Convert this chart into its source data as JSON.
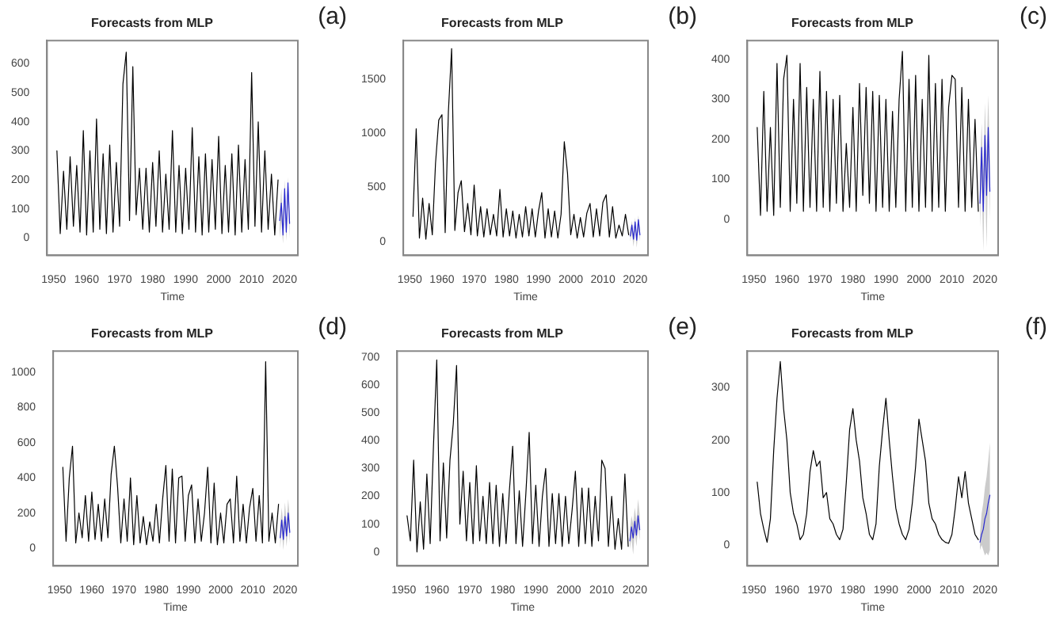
{
  "chart_data": [
    {
      "type": "line",
      "title": "Forecasts from MLP",
      "xlabel": "Time",
      "annotations": [
        "(a)"
      ],
      "xlim": [
        1948,
        2024
      ],
      "xticks": [
        1950,
        1960,
        1970,
        1980,
        1990,
        2000,
        2010,
        2020
      ],
      "ylim": [
        -60,
        680
      ],
      "yticks": [
        0,
        100,
        200,
        300,
        400,
        500,
        600
      ],
      "series": [
        {
          "color": "#000000",
          "x": [
            1951,
            1952,
            1953,
            1954,
            1955,
            1956,
            1957,
            1958,
            1959,
            1960,
            1961,
            1962,
            1963,
            1964,
            1965,
            1966,
            1967,
            1968,
            1969,
            1970,
            1971,
            1972,
            1973,
            1974,
            1975,
            1976,
            1977,
            1978,
            1979,
            1980,
            1981,
            1982,
            1983,
            1984,
            1985,
            1986,
            1987,
            1988,
            1989,
            1990,
            1991,
            1992,
            1993,
            1994,
            1995,
            1996,
            1997,
            1998,
            1999,
            2000,
            2001,
            2002,
            2003,
            2004,
            2005,
            2006,
            2007,
            2008,
            2009,
            2010,
            2011,
            2012,
            2013,
            2014,
            2015,
            2016,
            2017,
            2018
          ],
          "values": [
            300,
            15,
            230,
            30,
            280,
            40,
            250,
            20,
            370,
            10,
            300,
            20,
            410,
            30,
            290,
            15,
            320,
            20,
            260,
            40,
            530,
            640,
            60,
            590,
            80,
            240,
            30,
            240,
            20,
            260,
            40,
            300,
            20,
            220,
            30,
            370,
            20,
            250,
            15,
            240,
            30,
            380,
            20,
            280,
            10,
            290,
            20,
            270,
            30,
            350,
            15,
            250,
            20,
            290,
            10,
            320,
            20,
            270,
            30,
            570,
            40,
            400,
            20,
            300,
            30,
            220,
            10,
            200
          ]
        },
        {
          "color": "#2a2ad0",
          "x": [
            2018.5,
            2019,
            2019.5,
            2020,
            2020.5,
            2021,
            2021.5
          ],
          "values": [
            60,
            120,
            10,
            170,
            20,
            190,
            50
          ],
          "lower": [
            0,
            60,
            -20,
            100,
            -10,
            120,
            0
          ],
          "upper": [
            90,
            170,
            40,
            200,
            50,
            210,
            80
          ]
        }
      ]
    },
    {
      "type": "line",
      "title": "Forecasts from MLP",
      "xlabel": "Time",
      "annotations": [
        "(b)"
      ],
      "xlim": [
        1948,
        2024
      ],
      "xticks": [
        1950,
        1960,
        1970,
        1980,
        1990,
        2000,
        2010,
        2020
      ],
      "ylim": [
        -130,
        1855
      ],
      "yticks": [
        0,
        500,
        1000,
        1500
      ],
      "series": [
        {
          "color": "#000000",
          "x": [
            1951,
            1952,
            1953,
            1954,
            1955,
            1956,
            1957,
            1958,
            1959,
            1960,
            1961,
            1962,
            1963,
            1964,
            1965,
            1966,
            1967,
            1968,
            1969,
            1970,
            1971,
            1972,
            1973,
            1974,
            1975,
            1976,
            1977,
            1978,
            1979,
            1980,
            1981,
            1982,
            1983,
            1984,
            1985,
            1986,
            1987,
            1988,
            1989,
            1990,
            1991,
            1992,
            1993,
            1994,
            1995,
            1996,
            1997,
            1998,
            1999,
            2000,
            2001,
            2002,
            2003,
            2004,
            2005,
            2006,
            2007,
            2008,
            2009,
            2010,
            2011,
            2012,
            2013,
            2014,
            2015,
            2016,
            2017,
            2018
          ],
          "values": [
            230,
            1040,
            30,
            400,
            20,
            350,
            60,
            720,
            1120,
            1170,
            80,
            1200,
            1780,
            100,
            450,
            560,
            90,
            350,
            60,
            520,
            50,
            320,
            40,
            300,
            60,
            250,
            50,
            480,
            40,
            300,
            50,
            280,
            30,
            250,
            40,
            320,
            50,
            300,
            40,
            280,
            450,
            30,
            300,
            40,
            280,
            30,
            250,
            920,
            630,
            60,
            250,
            30,
            220,
            40,
            260,
            350,
            40,
            300,
            50,
            360,
            430,
            40,
            320,
            30,
            150,
            50,
            250,
            60
          ]
        },
        {
          "color": "#2a2ad0",
          "x": [
            2018.5,
            2019,
            2019.5,
            2020,
            2020.5,
            2021,
            2021.5
          ],
          "values": [
            50,
            150,
            20,
            180,
            10,
            200,
            60
          ],
          "lower": [
            0,
            80,
            -50,
            100,
            -60,
            120,
            0
          ],
          "upper": [
            100,
            190,
            60,
            220,
            50,
            240,
            110
          ]
        }
      ]
    },
    {
      "type": "line",
      "title": "Forecasts from MLP",
      "xlabel": "Time",
      "annotations": [
        "(c)"
      ],
      "xlim": [
        1948,
        2024
      ],
      "xticks": [
        1950,
        1960,
        1970,
        1980,
        1990,
        2000,
        2010,
        2020
      ],
      "ylim": [
        -90,
        447
      ],
      "yticks": [
        0,
        100,
        200,
        300,
        400
      ],
      "series": [
        {
          "color": "#000000",
          "x": [
            1951,
            1952,
            1953,
            1954,
            1955,
            1956,
            1957,
            1958,
            1959,
            1960,
            1961,
            1962,
            1963,
            1964,
            1965,
            1966,
            1967,
            1968,
            1969,
            1970,
            1971,
            1972,
            1973,
            1974,
            1975,
            1976,
            1977,
            1978,
            1979,
            1980,
            1981,
            1982,
            1983,
            1984,
            1985,
            1986,
            1987,
            1988,
            1989,
            1990,
            1991,
            1992,
            1993,
            1994,
            1995,
            1996,
            1997,
            1998,
            1999,
            2000,
            2001,
            2002,
            2003,
            2004,
            2005,
            2006,
            2007,
            2008,
            2009,
            2010,
            2011,
            2012,
            2013,
            2014,
            2015,
            2016,
            2017,
            2018
          ],
          "values": [
            230,
            10,
            320,
            20,
            230,
            10,
            390,
            30,
            350,
            410,
            20,
            300,
            40,
            390,
            20,
            330,
            30,
            300,
            20,
            370,
            30,
            320,
            20,
            300,
            40,
            310,
            20,
            190,
            30,
            280,
            20,
            340,
            60,
            330,
            40,
            320,
            20,
            310,
            30,
            300,
            20,
            270,
            30,
            300,
            420,
            20,
            350,
            30,
            360,
            20,
            300,
            30,
            410,
            20,
            340,
            30,
            350,
            20,
            280,
            360,
            350,
            30,
            330,
            20,
            300,
            30,
            250,
            20
          ]
        },
        {
          "color": "#2a2ad0",
          "x": [
            2018.5,
            2019,
            2019.5,
            2020,
            2020.5,
            2021,
            2021.5
          ],
          "values": [
            40,
            180,
            20,
            210,
            60,
            230,
            70
          ],
          "lower": [
            -20,
            100,
            -80,
            120,
            -70,
            150,
            0
          ],
          "upper": [
            120,
            240,
            110,
            290,
            150,
            310,
            160
          ]
        }
      ]
    },
    {
      "type": "line",
      "title": "Forecasts from MLP",
      "xlabel": "Time",
      "annotations": [
        "(d)"
      ],
      "xlim": [
        1948,
        2024
      ],
      "xticks": [
        1950,
        1960,
        1970,
        1980,
        1990,
        2000,
        2010,
        2020
      ],
      "ylim": [
        -100,
        1120
      ],
      "yticks": [
        0,
        200,
        400,
        600,
        800,
        1000
      ],
      "series": [
        {
          "color": "#000000",
          "x": [
            1951,
            1952,
            1953,
            1954,
            1955,
            1956,
            1957,
            1958,
            1959,
            1960,
            1961,
            1962,
            1963,
            1964,
            1965,
            1966,
            1967,
            1968,
            1969,
            1970,
            1971,
            1972,
            1973,
            1974,
            1975,
            1976,
            1977,
            1978,
            1979,
            1980,
            1981,
            1982,
            1983,
            1984,
            1985,
            1986,
            1987,
            1988,
            1989,
            1990,
            1991,
            1992,
            1993,
            1994,
            1995,
            1996,
            1997,
            1998,
            1999,
            2000,
            2001,
            2002,
            2003,
            2004,
            2005,
            2006,
            2007,
            2008,
            2009,
            2010,
            2011,
            2012,
            2013,
            2014,
            2015,
            2016,
            2017,
            2018
          ],
          "values": [
            460,
            40,
            400,
            580,
            30,
            200,
            60,
            300,
            40,
            320,
            50,
            250,
            40,
            280,
            60,
            420,
            580,
            350,
            30,
            280,
            40,
            400,
            20,
            300,
            30,
            180,
            20,
            150,
            40,
            250,
            30,
            280,
            470,
            40,
            450,
            30,
            400,
            410,
            40,
            300,
            360,
            30,
            280,
            40,
            200,
            460,
            30,
            370,
            20,
            200,
            30,
            250,
            280,
            30,
            410,
            40,
            250,
            30,
            230,
            340,
            40,
            300,
            30,
            1060,
            40,
            200,
            30,
            250
          ]
        },
        {
          "color": "#2a2ad0",
          "x": [
            2018.5,
            2019,
            2019.5,
            2020,
            2020.5,
            2021,
            2021.5
          ],
          "values": [
            60,
            160,
            50,
            180,
            70,
            200,
            90
          ],
          "lower": [
            0,
            100,
            -10,
            120,
            10,
            140,
            30
          ],
          "upper": [
            130,
            230,
            120,
            260,
            140,
            280,
            160
          ]
        }
      ]
    },
    {
      "type": "line",
      "title": "Forecasts from MLP",
      "xlabel": "Time",
      "annotations": [
        "(e)"
      ],
      "xlim": [
        1948,
        2024
      ],
      "xticks": [
        1950,
        1960,
        1970,
        1980,
        1990,
        2000,
        2010,
        2020
      ],
      "ylim": [
        -50,
        722
      ],
      "yticks": [
        0,
        100,
        200,
        300,
        400,
        500,
        600,
        700
      ],
      "series": [
        {
          "color": "#000000",
          "x": [
            1951,
            1952,
            1953,
            1954,
            1955,
            1956,
            1957,
            1958,
            1959,
            1960,
            1961,
            1962,
            1963,
            1964,
            1965,
            1966,
            1967,
            1968,
            1969,
            1970,
            1971,
            1972,
            1973,
            1974,
            1975,
            1976,
            1977,
            1978,
            1979,
            1980,
            1981,
            1982,
            1983,
            1984,
            1985,
            1986,
            1987,
            1988,
            1989,
            1990,
            1991,
            1992,
            1993,
            1994,
            1995,
            1996,
            1997,
            1998,
            1999,
            2000,
            2001,
            2002,
            2003,
            2004,
            2005,
            2006,
            2007,
            2008,
            2009,
            2010,
            2011,
            2012,
            2013,
            2014,
            2015,
            2016,
            2017,
            2018
          ],
          "values": [
            130,
            40,
            330,
            0,
            180,
            10,
            280,
            30,
            380,
            690,
            40,
            320,
            50,
            330,
            460,
            670,
            100,
            290,
            40,
            250,
            30,
            310,
            40,
            200,
            30,
            250,
            30,
            240,
            20,
            210,
            30,
            220,
            380,
            30,
            220,
            20,
            210,
            430,
            30,
            240,
            20,
            200,
            300,
            20,
            210,
            30,
            210,
            20,
            200,
            30,
            150,
            290,
            20,
            230,
            30,
            230,
            20,
            200,
            40,
            330,
            300,
            20,
            200,
            10,
            120,
            10,
            280,
            20
          ]
        },
        {
          "color": "#2a2ad0",
          "x": [
            2018.5,
            2019,
            2019.5,
            2020,
            2020.5,
            2021,
            2021.5
          ],
          "values": [
            40,
            90,
            50,
            110,
            60,
            130,
            80
          ],
          "lower": [
            10,
            50,
            -10,
            70,
            20,
            90,
            40
          ],
          "upper": [
            80,
            130,
            100,
            160,
            110,
            190,
            130
          ]
        }
      ]
    },
    {
      "type": "line",
      "title": "Forecasts from MLP",
      "xlabel": "Time",
      "annotations": [
        "(f)"
      ],
      "xlim": [
        1948,
        2024
      ],
      "xticks": [
        1950,
        1960,
        1970,
        1980,
        1990,
        2000,
        2010,
        2020
      ],
      "ylim": [
        -40,
        370
      ],
      "yticks": [
        0,
        100,
        200,
        300
      ],
      "series": [
        {
          "color": "#000000",
          "x": [
            1951,
            1952,
            1953,
            1954,
            1955,
            1956,
            1957,
            1958,
            1959,
            1960,
            1961,
            1962,
            1963,
            1964,
            1965,
            1966,
            1967,
            1968,
            1969,
            1970,
            1971,
            1972,
            1973,
            1974,
            1975,
            1976,
            1977,
            1978,
            1979,
            1980,
            1981,
            1982,
            1983,
            1984,
            1985,
            1986,
            1987,
            1988,
            1989,
            1990,
            1991,
            1992,
            1993,
            1994,
            1995,
            1996,
            1997,
            1998,
            1999,
            2000,
            2001,
            2002,
            2003,
            2004,
            2005,
            2006,
            2007,
            2008,
            2009,
            2010,
            2011,
            2012,
            2013,
            2014,
            2015,
            2016,
            2017,
            2018
          ],
          "values": [
            120,
            60,
            30,
            5,
            50,
            180,
            280,
            350,
            260,
            200,
            100,
            60,
            40,
            10,
            20,
            60,
            140,
            180,
            150,
            160,
            90,
            100,
            50,
            40,
            20,
            10,
            30,
            120,
            220,
            260,
            200,
            160,
            90,
            60,
            20,
            10,
            40,
            150,
            220,
            280,
            200,
            130,
            70,
            40,
            20,
            10,
            30,
            80,
            150,
            240,
            200,
            160,
            80,
            50,
            40,
            20,
            10,
            5,
            3,
            20,
            70,
            130,
            90,
            140,
            80,
            50,
            20,
            10
          ]
        },
        {
          "color": "#2a2ad0",
          "x": [
            2018.5,
            2019,
            2019.5,
            2020,
            2020.5,
            2021,
            2021.5
          ],
          "values": [
            5,
            20,
            30,
            50,
            60,
            80,
            95
          ],
          "lower": [
            -10,
            0,
            -10,
            -20,
            -15,
            -20,
            -10
          ],
          "upper": [
            20,
            60,
            80,
            110,
            130,
            160,
            195
          ]
        }
      ]
    }
  ]
}
